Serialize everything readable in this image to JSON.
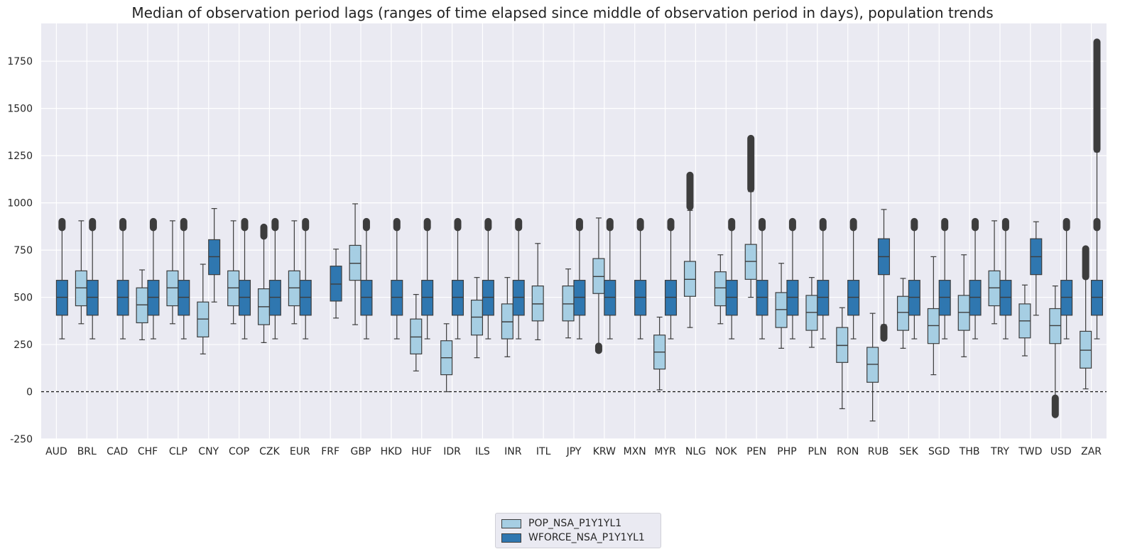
{
  "chart_data": {
    "type": "box",
    "title": "Median of observation period lags (ranges of time elapsed since middle of observation period in days), population trends",
    "xlabel": "",
    "ylabel": "",
    "ylim": [
      -250,
      1950
    ],
    "yticks": [
      -250,
      0,
      250,
      500,
      750,
      1000,
      1250,
      1500,
      1750
    ],
    "grid": true,
    "legend_position": "bottom-center",
    "reference_line": {
      "y": 0,
      "style": "dashed"
    },
    "categories": [
      "AUD",
      "BRL",
      "CAD",
      "CHF",
      "CLP",
      "CNY",
      "COP",
      "CZK",
      "EUR",
      "FRF",
      "GBP",
      "HKD",
      "HUF",
      "IDR",
      "ILS",
      "INR",
      "ITL",
      "JPY",
      "KRW",
      "MXN",
      "MYR",
      "NLG",
      "NOK",
      "PEN",
      "PHP",
      "PLN",
      "RON",
      "RUB",
      "SEK",
      "SGD",
      "THB",
      "TRY",
      "TWD",
      "USD",
      "ZAR"
    ],
    "series": [
      {
        "name": "POP_NSA_P1Y1YL1",
        "color": "#a6cee3",
        "boxes": [
          null,
          {
            "whislo": 360,
            "q1": 455,
            "med": 550,
            "q3": 640,
            "whishi": 905,
            "fliers": []
          },
          null,
          {
            "whislo": 275,
            "q1": 365,
            "med": 460,
            "q3": 550,
            "whishi": 645,
            "fliers": []
          },
          {
            "whislo": 360,
            "q1": 455,
            "med": 550,
            "q3": 640,
            "whishi": 905,
            "fliers": []
          },
          {
            "whislo": 200,
            "q1": 290,
            "med": 385,
            "q3": 475,
            "whishi": 675,
            "fliers": []
          },
          {
            "whislo": 360,
            "q1": 455,
            "med": 550,
            "q3": 640,
            "whishi": 905,
            "fliers": []
          },
          {
            "whislo": 260,
            "q1": 355,
            "med": 450,
            "q3": 545,
            "whishi": 815,
            "fliers": [
              [
                820,
                875
              ]
            ]
          },
          {
            "whislo": 360,
            "q1": 455,
            "med": 550,
            "q3": 640,
            "whishi": 905,
            "fliers": []
          },
          null,
          {
            "whislo": 355,
            "q1": 590,
            "med": 680,
            "q3": 775,
            "whishi": 995,
            "fliers": []
          },
          null,
          {
            "whislo": 110,
            "q1": 200,
            "med": 290,
            "q3": 385,
            "whishi": 515,
            "fliers": []
          },
          {
            "whislo": 0,
            "q1": 90,
            "med": 180,
            "q3": 270,
            "whishi": 360,
            "fliers": []
          },
          {
            "whislo": 180,
            "q1": 300,
            "med": 395,
            "q3": 485,
            "whishi": 605,
            "fliers": []
          },
          {
            "whislo": 185,
            "q1": 280,
            "med": 370,
            "q3": 465,
            "whishi": 605,
            "fliers": []
          },
          {
            "whislo": 275,
            "q1": 375,
            "med": 465,
            "q3": 560,
            "whishi": 785,
            "fliers": []
          },
          {
            "whislo": 285,
            "q1": 375,
            "med": 465,
            "q3": 560,
            "whishi": 650,
            "fliers": []
          },
          {
            "whislo": 215,
            "q1": 520,
            "med": 610,
            "q3": 705,
            "whishi": 920,
            "fliers": [
              [
                215,
                245
              ]
            ]
          },
          null,
          {
            "whislo": 10,
            "q1": 120,
            "med": 210,
            "q3": 300,
            "whishi": 395,
            "fliers": []
          },
          {
            "whislo": 340,
            "q1": 505,
            "med": 595,
            "q3": 690,
            "whishi": 960,
            "fliers": [
              [
                975,
                1150
              ]
            ]
          },
          {
            "whislo": 360,
            "q1": 455,
            "med": 550,
            "q3": 635,
            "whishi": 725,
            "fliers": []
          },
          {
            "whislo": 500,
            "q1": 595,
            "med": 690,
            "q3": 780,
            "whishi": 1060,
            "fliers": [
              [
                1070,
                1345
              ]
            ]
          },
          {
            "whislo": 230,
            "q1": 340,
            "med": 435,
            "q3": 525,
            "whishi": 680,
            "fliers": []
          },
          {
            "whislo": 235,
            "q1": 325,
            "med": 420,
            "q3": 510,
            "whishi": 605,
            "fliers": []
          },
          {
            "whislo": -90,
            "q1": 155,
            "med": 245,
            "q3": 340,
            "whishi": 445,
            "fliers": []
          },
          {
            "whislo": -155,
            "q1": 50,
            "med": 145,
            "q3": 235,
            "whishi": 415,
            "fliers": []
          },
          {
            "whislo": 230,
            "q1": 325,
            "med": 420,
            "q3": 505,
            "whishi": 600,
            "fliers": []
          },
          {
            "whislo": 90,
            "q1": 255,
            "med": 350,
            "q3": 440,
            "whishi": 715,
            "fliers": []
          },
          {
            "whislo": 185,
            "q1": 325,
            "med": 420,
            "q3": 510,
            "whishi": 725,
            "fliers": []
          },
          {
            "whislo": 360,
            "q1": 455,
            "med": 550,
            "q3": 640,
            "whishi": 905,
            "fliers": []
          },
          {
            "whislo": 190,
            "q1": 285,
            "med": 375,
            "q3": 465,
            "whishi": 565,
            "fliers": []
          },
          {
            "whislo": -120,
            "q1": 255,
            "med": 350,
            "q3": 440,
            "whishi": 560,
            "fliers": [
              [
                -125,
                -30
              ]
            ]
          },
          {
            "whislo": 15,
            "q1": 125,
            "med": 220,
            "q3": 320,
            "whishi": 600,
            "fliers": [
              [
                605,
                760
              ]
            ]
          }
        ]
      },
      {
        "name": "WFORCE_NSA_P1Y1YL1",
        "color": "#2f77b0",
        "boxes": [
          {
            "whislo": 280,
            "q1": 405,
            "med": 500,
            "q3": 590,
            "whishi": 860,
            "fliers": [
              [
                865,
                905
              ]
            ]
          },
          {
            "whislo": 280,
            "q1": 405,
            "med": 500,
            "q3": 590,
            "whishi": 860,
            "fliers": [
              [
                865,
                905
              ]
            ]
          },
          {
            "whislo": 280,
            "q1": 405,
            "med": 500,
            "q3": 590,
            "whishi": 860,
            "fliers": [
              [
                865,
                905
              ]
            ]
          },
          {
            "whislo": 280,
            "q1": 405,
            "med": 500,
            "q3": 590,
            "whishi": 860,
            "fliers": [
              [
                865,
                905
              ]
            ]
          },
          {
            "whislo": 280,
            "q1": 405,
            "med": 500,
            "q3": 590,
            "whishi": 860,
            "fliers": [
              [
                865,
                905
              ]
            ]
          },
          {
            "whislo": 475,
            "q1": 620,
            "med": 715,
            "q3": 805,
            "whishi": 970,
            "fliers": []
          },
          {
            "whislo": 280,
            "q1": 405,
            "med": 500,
            "q3": 590,
            "whishi": 860,
            "fliers": [
              [
                865,
                905
              ]
            ]
          },
          {
            "whislo": 280,
            "q1": 405,
            "med": 500,
            "q3": 590,
            "whishi": 860,
            "fliers": [
              [
                865,
                905
              ]
            ]
          },
          {
            "whislo": 280,
            "q1": 405,
            "med": 500,
            "q3": 590,
            "whishi": 860,
            "fliers": [
              [
                865,
                905
              ]
            ]
          },
          {
            "whislo": 390,
            "q1": 480,
            "med": 570,
            "q3": 665,
            "whishi": 755,
            "fliers": []
          },
          {
            "whislo": 280,
            "q1": 405,
            "med": 500,
            "q3": 590,
            "whishi": 860,
            "fliers": [
              [
                865,
                905
              ]
            ]
          },
          {
            "whislo": 280,
            "q1": 405,
            "med": 500,
            "q3": 590,
            "whishi": 860,
            "fliers": [
              [
                865,
                905
              ]
            ]
          },
          {
            "whislo": 280,
            "q1": 405,
            "med": 500,
            "q3": 590,
            "whishi": 860,
            "fliers": [
              [
                865,
                905
              ]
            ]
          },
          {
            "whislo": 280,
            "q1": 405,
            "med": 500,
            "q3": 590,
            "whishi": 860,
            "fliers": [
              [
                865,
                905
              ]
            ]
          },
          {
            "whislo": 280,
            "q1": 405,
            "med": 500,
            "q3": 590,
            "whishi": 860,
            "fliers": [
              [
                865,
                905
              ]
            ]
          },
          {
            "whislo": 280,
            "q1": 405,
            "med": 500,
            "q3": 590,
            "whishi": 860,
            "fliers": [
              [
                865,
                905
              ]
            ]
          },
          null,
          {
            "whislo": 280,
            "q1": 405,
            "med": 500,
            "q3": 590,
            "whishi": 860,
            "fliers": [
              [
                865,
                905
              ]
            ]
          },
          {
            "whislo": 280,
            "q1": 405,
            "med": 500,
            "q3": 590,
            "whishi": 860,
            "fliers": [
              [
                865,
                905
              ]
            ]
          },
          {
            "whislo": 280,
            "q1": 405,
            "med": 500,
            "q3": 590,
            "whishi": 860,
            "fliers": [
              [
                865,
                905
              ]
            ]
          },
          {
            "whislo": 280,
            "q1": 405,
            "med": 500,
            "q3": 590,
            "whishi": 860,
            "fliers": [
              [
                865,
                905
              ]
            ]
          },
          null,
          {
            "whislo": 280,
            "q1": 405,
            "med": 500,
            "q3": 590,
            "whishi": 860,
            "fliers": [
              [
                865,
                905
              ]
            ]
          },
          {
            "whislo": 280,
            "q1": 405,
            "med": 500,
            "q3": 590,
            "whishi": 860,
            "fliers": [
              [
                865,
                905
              ]
            ]
          },
          {
            "whislo": 280,
            "q1": 405,
            "med": 500,
            "q3": 590,
            "whishi": 860,
            "fliers": [
              [
                865,
                905
              ]
            ]
          },
          {
            "whislo": 280,
            "q1": 405,
            "med": 500,
            "q3": 590,
            "whishi": 860,
            "fliers": [
              [
                865,
                905
              ]
            ]
          },
          {
            "whislo": 280,
            "q1": 405,
            "med": 500,
            "q3": 590,
            "whishi": 860,
            "fliers": [
              [
                865,
                905
              ]
            ]
          },
          {
            "whislo": 355,
            "q1": 620,
            "med": 715,
            "q3": 810,
            "whishi": 965,
            "fliers": [
              [
                280,
                345
              ]
            ]
          },
          {
            "whislo": 280,
            "q1": 405,
            "med": 500,
            "q3": 590,
            "whishi": 860,
            "fliers": [
              [
                865,
                905
              ]
            ]
          },
          {
            "whislo": 280,
            "q1": 405,
            "med": 500,
            "q3": 590,
            "whishi": 860,
            "fliers": [
              [
                865,
                905
              ]
            ]
          },
          {
            "whislo": 280,
            "q1": 405,
            "med": 500,
            "q3": 590,
            "whishi": 860,
            "fliers": [
              [
                865,
                905
              ]
            ]
          },
          {
            "whislo": 280,
            "q1": 405,
            "med": 500,
            "q3": 590,
            "whishi": 860,
            "fliers": [
              [
                865,
                905
              ]
            ]
          },
          {
            "whislo": 405,
            "q1": 620,
            "med": 715,
            "q3": 810,
            "whishi": 900,
            "fliers": []
          },
          {
            "whislo": 280,
            "q1": 405,
            "med": 500,
            "q3": 590,
            "whishi": 860,
            "fliers": [
              [
                865,
                905
              ]
            ]
          },
          {
            "whislo": 280,
            "q1": 405,
            "med": 500,
            "q3": 590,
            "whishi": 1270,
            "fliers": [
              [
                1280,
                1855
              ],
              [
                865,
                905
              ]
            ]
          }
        ]
      }
    ]
  },
  "legend": {
    "items": [
      {
        "label": "POP_NSA_P1Y1YL1",
        "color": "#a6cee3"
      },
      {
        "label": "WFORCE_NSA_P1Y1YL1",
        "color": "#2f77b0"
      }
    ]
  }
}
